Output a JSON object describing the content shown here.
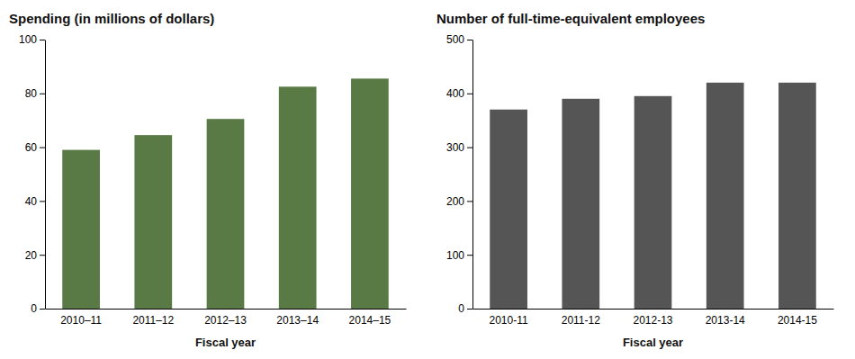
{
  "chart_data": [
    {
      "type": "bar",
      "title": "Spending (in millions of dollars)",
      "categories": [
        "2010–11",
        "2011–12",
        "2012–13",
        "2013–14",
        "2014–15"
      ],
      "values": [
        59,
        64.5,
        70.5,
        82.5,
        85.5
      ],
      "color": "#5a7a45",
      "xlabel": "Fiscal year",
      "ylim": [
        0,
        100
      ],
      "yticks": [
        0,
        20,
        40,
        60,
        80,
        100
      ],
      "grid": false
    },
    {
      "type": "bar",
      "title": "Number of full-time-equivalent employees",
      "categories": [
        "2010-11",
        "2011-12",
        "2012-13",
        "2013-14",
        "2014-15"
      ],
      "values": [
        370,
        390,
        395,
        420,
        420
      ],
      "color": "#555555",
      "xlabel": "Fiscal year",
      "ylim": [
        0,
        500
      ],
      "yticks": [
        0,
        100,
        200,
        300,
        400,
        500
      ],
      "grid": false
    }
  ]
}
